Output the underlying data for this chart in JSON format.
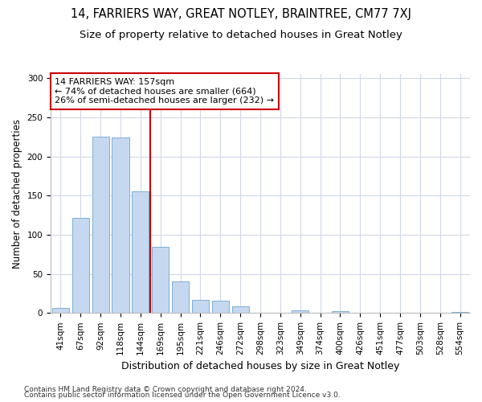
{
  "title1": "14, FARRIERS WAY, GREAT NOTLEY, BRAINTREE, CM77 7XJ",
  "title2": "Size of property relative to detached houses in Great Notley",
  "xlabel": "Distribution of detached houses by size in Great Notley",
  "ylabel": "Number of detached properties",
  "categories": [
    "41sqm",
    "67sqm",
    "92sqm",
    "118sqm",
    "144sqm",
    "169sqm",
    "195sqm",
    "221sqm",
    "246sqm",
    "272sqm",
    "298sqm",
    "323sqm",
    "349sqm",
    "374sqm",
    "400sqm",
    "426sqm",
    "451sqm",
    "477sqm",
    "503sqm",
    "528sqm",
    "554sqm"
  ],
  "values": [
    7,
    122,
    225,
    224,
    155,
    85,
    40,
    17,
    16,
    9,
    0,
    0,
    3,
    0,
    2,
    0,
    0,
    0,
    0,
    0,
    1
  ],
  "bar_color": "#c5d8f0",
  "bar_edgecolor": "#7bafd4",
  "vline_x": 4.5,
  "annotation_line1": "14 FARRIERS WAY: 157sqm",
  "annotation_line2": "← 74% of detached houses are smaller (664)",
  "annotation_line3": "26% of semi-detached houses are larger (232) →",
  "annotation_box_facecolor": "#ffffff",
  "annotation_box_edgecolor": "#cc0000",
  "vline_color": "#cc0000",
  "footer1": "Contains HM Land Registry data © Crown copyright and database right 2024.",
  "footer2": "Contains public sector information licensed under the Open Government Licence v3.0.",
  "ylim": [
    0,
    305
  ],
  "yticks": [
    0,
    50,
    100,
    150,
    200,
    250,
    300
  ],
  "title1_fontsize": 10.5,
  "title2_fontsize": 9.5,
  "xlabel_fontsize": 9,
  "ylabel_fontsize": 8.5,
  "tick_fontsize": 7.5,
  "annotation_fontsize": 8,
  "footer_fontsize": 6.5,
  "background_color": "#ffffff",
  "grid_color": "#d0d8e8"
}
